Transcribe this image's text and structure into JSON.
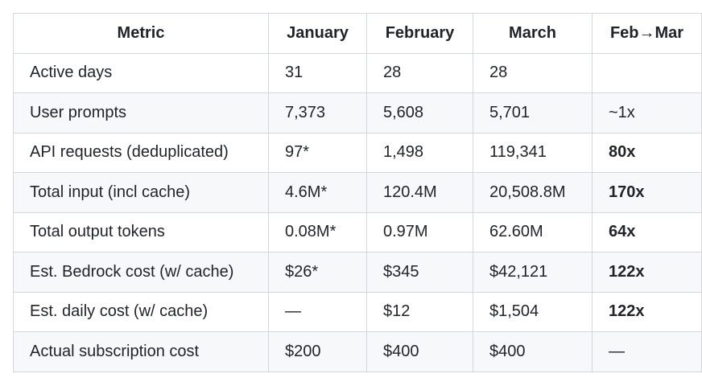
{
  "table": {
    "header": [
      "Metric",
      "January",
      "February",
      "March",
      "Feb→Mar"
    ],
    "rows": [
      [
        "Active days",
        "31",
        "28",
        "28",
        null
      ],
      [
        "User prompts",
        "7,373",
        "5,608",
        "5,701",
        "~1x"
      ],
      [
        "API requests (deduplicated)",
        "97*",
        "1,498",
        "119,341",
        "80x"
      ],
      [
        "Total input (incl cache)",
        "4.6M*",
        "120.4M",
        "20,508.8M",
        "170x"
      ],
      [
        "Total output tokens",
        "0.08M*",
        "0.97M",
        "62.60M",
        "64x"
      ],
      [
        "Est. Bedrock cost (w/ cache)",
        "$26*",
        "$345",
        "$42,121",
        "122x"
      ],
      [
        "Est. daily cost (w/ cache)",
        "—",
        "$12",
        "$1,504",
        "122x"
      ],
      [
        "Actual subscription cost",
        "$200",
        "$400",
        "$400",
        "—"
      ]
    ]
  }
}
